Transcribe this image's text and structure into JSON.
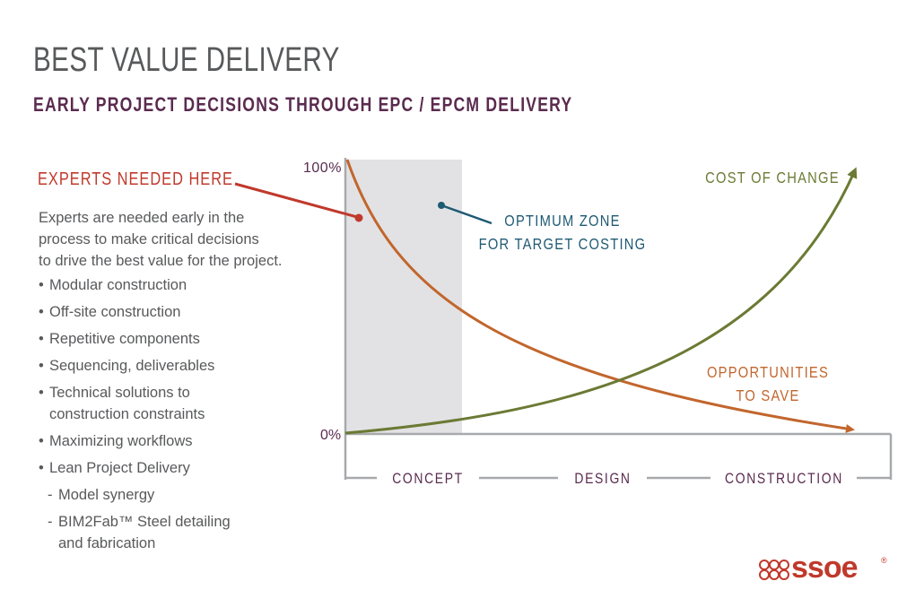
{
  "header": {
    "title": "BEST VALUE DELIVERY",
    "subtitle": "EARLY PROJECT DECISIONS THROUGH EPC / EPCM DELIVERY"
  },
  "left_panel": {
    "heading": "EXPERTS NEEDED HERE",
    "intro_lines": [
      "Experts are needed early in the",
      "process to make critical decisions",
      "to drive the best value for the project."
    ],
    "bullets": [
      {
        "prefix": "•",
        "lines": [
          "Modular construction"
        ]
      },
      {
        "prefix": "•",
        "lines": [
          "Off-site construction"
        ]
      },
      {
        "prefix": "•",
        "lines": [
          "Repetitive components"
        ]
      },
      {
        "prefix": "•",
        "lines": [
          "Sequencing, deliverables"
        ]
      },
      {
        "prefix": "•",
        "lines": [
          "Technical solutions to",
          "construction constraints"
        ]
      },
      {
        "prefix": "•",
        "lines": [
          "Maximizing workflows"
        ]
      },
      {
        "prefix": "•",
        "lines": [
          "Lean Project Delivery"
        ]
      },
      {
        "prefix": "-",
        "lines": [
          "Model synergy"
        ]
      },
      {
        "prefix": "-",
        "lines": [
          "BIM2Fab™ Steel detailing",
          "and fabrication"
        ]
      }
    ]
  },
  "diagram": {
    "y_top_label": "100%",
    "y_bottom_label": "0%",
    "zone_label": [
      "OPTIMUM ZONE",
      "FOR TARGET COSTING"
    ],
    "cost_label": "COST OF CHANGE",
    "opportunities_label": [
      "OPPORTUNITIES",
      "TO SAVE"
    ],
    "phases": [
      "CONCEPT",
      "DESIGN",
      "CONSTRUCTION"
    ]
  },
  "logo": {
    "text": "ssoe",
    "reg": "®"
  },
  "colors": {
    "title": "#58595b",
    "subtitle": "#5a2b4f",
    "accent_red": "#c0392b",
    "opportunities_orange": "#c2662d",
    "cost_green": "#6b7a34",
    "zone_blue": "#1f5a73",
    "axis_gray": "#a7a9ac",
    "zone_fill": "#e2e2e4"
  }
}
